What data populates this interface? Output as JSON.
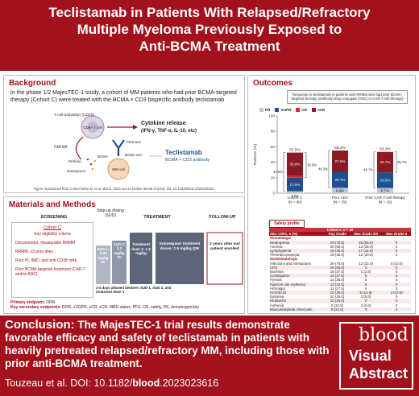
{
  "title": {
    "line1": "Teclistamab in Patients With Relapsed/Refractory",
    "line2": "Multiple Myeloma Previously Exposed to",
    "line3": "Anti-BCMA Treatment"
  },
  "background": {
    "heading": "Background",
    "text": "In the phase 1/2 MajesTEC-1 study, a cohort of MM patients who had prior BCMA-targeted therapy (Cohort C) were treated with the BCMA × CD3 bispecific antibody teclistamab",
    "diagram": {
      "t_cell_activation": "T-cell activation (CD25)",
      "cd8_t_cell": "CD8+ T cell",
      "cytokine_release": "Cytokine release",
      "cytokines": "(IFN-γ, TNF-α, IL-10, etc)",
      "cd3_arm": "CD3 arm",
      "cell_kill": "Cell kill",
      "perforin": "Perforin",
      "granzymes": "Granzymes",
      "mm_cell": "MM cell",
      "bcma": "BCMA",
      "bcma_arm": "BCMA arm",
      "teclistamab": "Teclistamab",
      "teclistamab_sub": "BCMA × CD3 antibody"
    },
    "figure_credit": "Figure reproduced from Cortes-Selva D, et al. Blood. 2024 Apr 24 [online ahead of print]. doi: 10.1182/blood.2023022823."
  },
  "outcomes": {
    "heading": "Outcomes",
    "caption": "Response to teclistamab in patients with RRMM who had prior BCMA-targeted therapy (antibody-drug conjugate [ADC] or CAR T-cell therapy)",
    "y_axis_ticks": [
      "100",
      "80",
      "60",
      "40",
      "20",
      "0"
    ],
    "legend_colors": {
      "PR": "#bfc7d6",
      "VGPR": "#1d4f91",
      "CR": "#d9242f",
      "sCR": "#8c1a24"
    }
  },
  "chart_data": {
    "type": "bar",
    "stacked": true,
    "ylabel": "Patients (%)",
    "ylim": [
      0,
      100
    ],
    "yticks": [
      0,
      20,
      40,
      60,
      80,
      100
    ],
    "categories": [
      "Cohort C\n(N = 40)",
      "Prior ADC\n(N = 29)",
      "Prior CAR T-cell therapy\n(N = 15)"
    ],
    "series": [
      {
        "name": "PR",
        "values": [
          2.5,
          6.9,
          6.7
        ],
        "labels": [
          "2.5%",
          "6.9%",
          "6.7%"
        ]
      },
      {
        "name": "VGPR",
        "values": [
          17.5,
          20.7,
          20.0
        ],
        "labels": [
          "17.5%",
          "20.7%",
          "20.0%"
        ]
      },
      {
        "name": "CR",
        "values": [
          2.5,
          0.0,
          0.0
        ],
        "labels": [
          "",
          "",
          ""
        ]
      },
      {
        "name": "sCR",
        "values": [
          30.0,
          27.6,
          26.7
        ],
        "labels": [
          "30.0%",
          "27.6%",
          "26.7%"
        ]
      }
    ],
    "totals": [
      "52.5%",
      "55.2%",
      "53.3%"
    ],
    "bracket_left": [
      "47.5%",
      "48.3%",
      "46.7%"
    ],
    "bracket_right": [
      "30.0%",
      "",
      "26.7%"
    ],
    "legend": "top"
  },
  "safety": {
    "title": "Safety profile",
    "cohort_label": "Cohort C",
    "cohort_n": "n = 40",
    "header": [
      "AEs >20%, n (%)",
      "Any Grade",
      "Max Grade 3/4",
      "Max Grade 5"
    ],
    "sections": [
      {
        "name": "Hematologic",
        "rows": [
          [
            "Neutropenia",
            "28 (70.0)",
            "26 (65.0)",
            "0"
          ],
          [
            "Anemia",
            "20 (50.0)",
            "14 (35.0)",
            "0"
          ],
          [
            "Lymphopenia",
            "18 (45.0)",
            "17 (42.5)",
            "0"
          ],
          [
            "Thrombocytopenia",
            "18 (45.0)",
            "12 (30.0)",
            "0"
          ]
        ]
      },
      {
        "name": "Nonhematologic",
        "rows": [
          [
            "Infections and infestations",
            "28 (70.0)",
            "13 (32.5)",
            "4 (10.0)"
          ],
          [
            "CRS",
            "26 (65.0)",
            "0",
            "0"
          ],
          [
            "Diarrhea",
            "15 (37.5)",
            "1 (2.5)",
            "0"
          ],
          [
            "Constipation",
            "15 (37.5)",
            "0",
            "0"
          ],
          [
            "Pyrexia",
            "14 (35.0)",
            "0",
            "0"
          ],
          [
            "Injection site erythema",
            "13 (32.5)",
            "0",
            "0"
          ],
          [
            "Arthralgia",
            "11 (27.5)",
            "0",
            "0"
          ],
          [
            "COVID-19",
            "10 (25.0)",
            "5 (12.5)",
            "4 (10.0)"
          ],
          [
            "Dyspnea",
            "10 (25.0)",
            "2 (5.0)",
            "0"
          ],
          [
            "Headache",
            "10 (25.0)",
            "0",
            "0"
          ],
          [
            "Asthenia",
            "9 (22.5)",
            "2 (5.0)",
            "0"
          ],
          [
            "Musculoskeletal chest pain",
            "9 (22.5)",
            "0",
            "0"
          ]
        ]
      }
    ]
  },
  "materials": {
    "heading": "Materials and Methods",
    "screening": "SCREENING",
    "step_up": "Step-up dosing (SUD)",
    "treatment": "TREATMENT",
    "follow_up": "FOLLOW-UP",
    "cohort": "Cohort C",
    "eligibility_title": "Key eligibility criteria",
    "eligibility": [
      "Documented, measurable RRMM",
      "RRMM, ≥3 prior lines",
      "Prior PI, IMiD, and anti-CD38 mAb",
      "Prior BCMA-targeted treatment (CAR-T and/or ADC)"
    ],
    "sud1": "SUD 1: 0.06 mg/kg SC",
    "sud2": "SUD 2: 0.3 mg/kg SC",
    "treatment_dose1": "Treatment dose 1: 1.5 mg/kg",
    "subsequent": "Subsequent treatment doses: 1.5 mg/kg QW",
    "follow_up_text": "2 years after last patient enrolled",
    "interval_note": "2-4 days allowed between SUD 1, SUD 2, and treatment dose 1",
    "primary_label": "Primary endpoint:",
    "primary_value": "ORR",
    "secondary_label": "Key secondary endpoints:",
    "secondary_value": "DOR, ≥VGPR, ≥CR, sCR, MRD status, PFS, OS, safety, PK, immunogenicity"
  },
  "conclusion": {
    "lead": "Conclusion:",
    "text": "The MajesTEC-1 trial results demonstrate favorable efficacy and safety of teclistamab in patients with heavily pretreated relapsed/refractory MM, including those with prior anti-BCMA treatment.",
    "citation_prefix": "Touzeau et al. DOI: 10.1182/",
    "citation_journal": "blood",
    "citation_suffix": ".2023023616",
    "logo_word": "blood",
    "logo_line1": "Visual",
    "logo_line2": "Abstract"
  }
}
